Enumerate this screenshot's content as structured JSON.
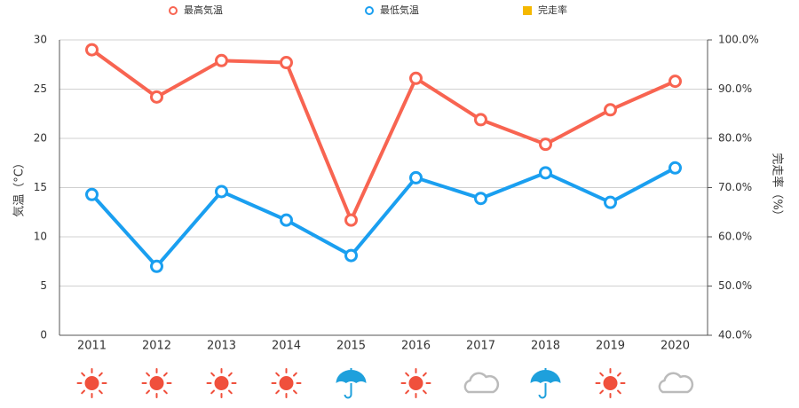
{
  "chart_data": {
    "type": "line",
    "categories": [
      "2011",
      "2012",
      "2013",
      "2014",
      "2015",
      "2016",
      "2017",
      "2018",
      "2019",
      "2020"
    ],
    "series": [
      {
        "name": "最高気温",
        "color": "#f86451",
        "values": [
          29.0,
          24.2,
          27.9,
          27.7,
          11.7,
          26.1,
          21.9,
          19.4,
          22.9,
          25.8
        ]
      },
      {
        "name": "最低気温",
        "color": "#1a9ff0",
        "values": [
          14.3,
          7.0,
          14.6,
          11.7,
          8.1,
          16.0,
          13.9,
          16.5,
          13.5,
          17.0
        ]
      },
      {
        "name": "完走率",
        "color": "#f5b800",
        "axis": "y2",
        "values": [
          null,
          null,
          null,
          null,
          null,
          null,
          null,
          null,
          null,
          null
        ]
      }
    ],
    "ylabel": "気温（°C）",
    "y2label": "完走率（%）",
    "ylim": [
      0,
      30
    ],
    "yticks": [
      0,
      5,
      10,
      15,
      20,
      25,
      30
    ],
    "y2lim": [
      40,
      100
    ],
    "y2ticks": [
      {
        "value": 40,
        "label": "40.0%"
      },
      {
        "value": 50,
        "label": "50.0%"
      },
      {
        "value": 60,
        "label": "60.0%"
      },
      {
        "value": 70,
        "label": "70.0%"
      },
      {
        "value": 80,
        "label": "80.0%"
      },
      {
        "value": 90,
        "label": "90.0%"
      },
      {
        "value": 100,
        "label": "100.0%"
      }
    ],
    "grid": true,
    "legend": "top"
  }
}
